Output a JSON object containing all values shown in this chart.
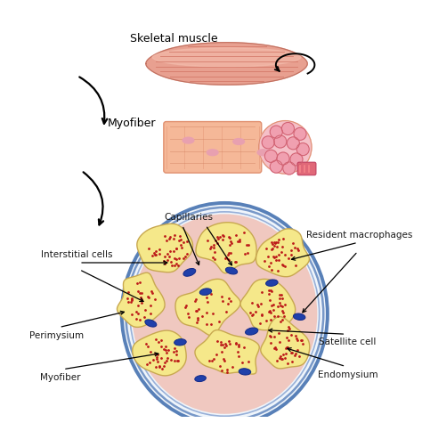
{
  "background_color": "#ffffff",
  "fig_width": 4.74,
  "fig_height": 4.85,
  "dpi": 100,
  "skeletal_muscle_label": "Skeletal muscle",
  "myofiber_label": "Myofiber",
  "capillaries_label": "Capillaries",
  "interstitial_label": "Interstitial cells",
  "perimysium_label": "Perimysium",
  "myofiber2_label": "Myofiber",
  "resident_label": "Resident macrophages",
  "satellite_label": "Satellite cell",
  "endomysium_label": "Endomysium",
  "muscle_base_color": "#e8a090",
  "muscle_stripe_color": "#d07060",
  "muscle_highlight": "#f5c0b0",
  "myofiber_body_color": "#f5b898",
  "myofiber_border_color": "#e09070",
  "myofiber_end_color": "#f090a0",
  "myofiber_circle_color": "#f0a0b0",
  "cell_fill": "#f5e88a",
  "cell_border_color": "#c8a850",
  "outer_fill": "#f0d8d8",
  "outer_ring1": "#7090c0",
  "outer_ring2": "#90a8d0",
  "outer_ring3": "#a8c0d8",
  "connective_color": "#f0c8c0",
  "blue_oval_color": "#2040aa",
  "red_dot_color": "#bb1818",
  "label_fontsize": 7.5,
  "label_color": "#1a1a1a"
}
